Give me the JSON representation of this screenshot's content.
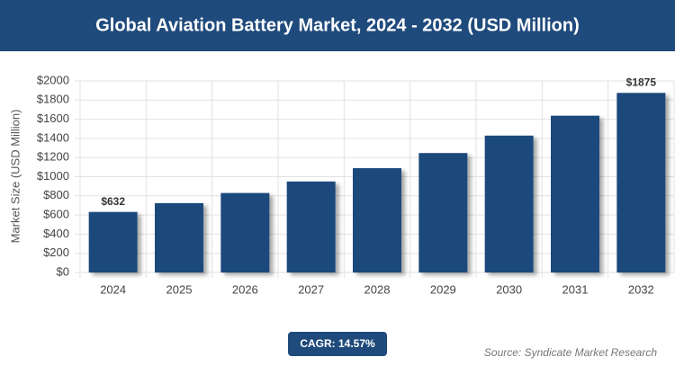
{
  "chart_data": {
    "type": "bar",
    "title": "Global Aviation Battery Market, 2024 - 2032 (USD Million)",
    "y_label": "Market Size (USD Million)",
    "categories": [
      "2024",
      "2025",
      "2026",
      "2027",
      "2028",
      "2029",
      "2030",
      "2031",
      "2032"
    ],
    "values": [
      632,
      724,
      830,
      950,
      1089,
      1247,
      1429,
      1637,
      1875
    ],
    "value_labels": [
      "$632",
      null,
      null,
      null,
      null,
      null,
      null,
      null,
      "$1875"
    ],
    "color": "#1f4a7c",
    "ylim": [
      0,
      2000
    ],
    "yticks": [
      {
        "value": 0,
        "label": "$0"
      },
      {
        "value": 200,
        "label": "$200"
      },
      {
        "value": 400,
        "label": "$400"
      },
      {
        "value": 600,
        "label": "$600"
      },
      {
        "value": 800,
        "label": "$800"
      },
      {
        "value": 1000,
        "label": "$1000"
      },
      {
        "value": 1200,
        "label": "$1200"
      },
      {
        "value": 1400,
        "label": "$1400"
      },
      {
        "value": 1600,
        "label": "$1600"
      },
      {
        "value": 1800,
        "label": "$1800"
      },
      {
        "value": 2000,
        "label": "$2000"
      }
    ],
    "grid": true,
    "annotation": "CAGR: 14.57%",
    "source": "Source: Syndicate Market Research"
  }
}
